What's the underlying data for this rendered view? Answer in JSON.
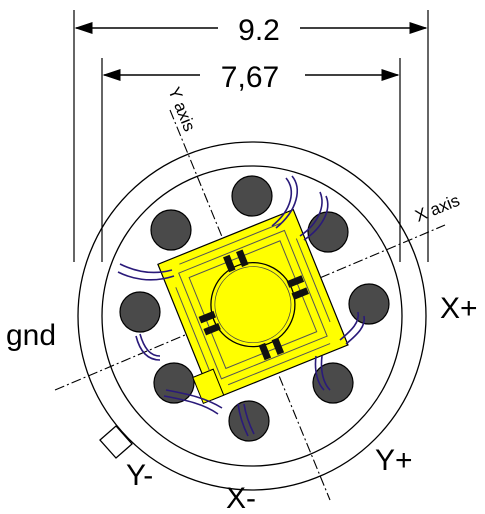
{
  "dimensions": {
    "outer_width": "9.2",
    "inner_width": "7,67"
  },
  "axes": {
    "x_axis": "X axis",
    "y_axis": "Y axis"
  },
  "pins": {
    "x_plus": "X+",
    "x_minus": "X-",
    "y_plus": "Y+",
    "y_minus": "Y-",
    "gnd": "gnd"
  },
  "colors": {
    "chip": "#ffff00",
    "pad": "#4a4a4a",
    "wire": "#2a1a7a",
    "outline": "#000000"
  }
}
